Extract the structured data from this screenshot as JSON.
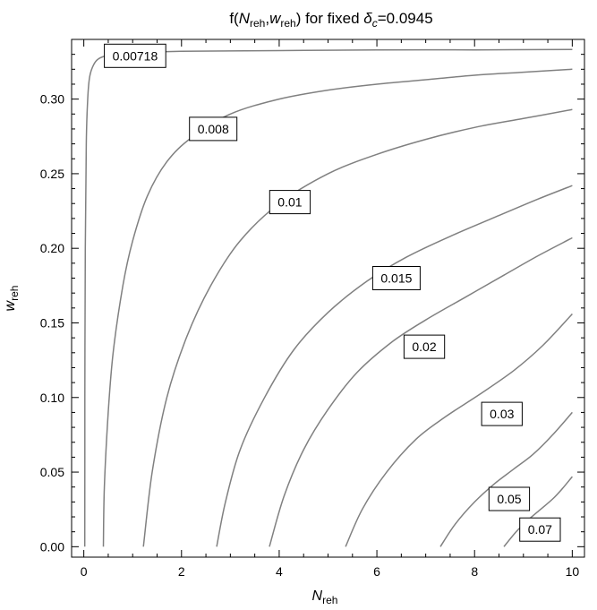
{
  "chart_data": {
    "type": "contour",
    "title": {
      "prefix": "f(",
      "x_symbol": "N",
      "x_sub": "reh",
      "sep": ",",
      "y_symbol": "w",
      "y_sub": "reh",
      "middle": ") for fixed ",
      "param_symbol": "δ",
      "param_sub": "c",
      "param_value": "=0.0945"
    },
    "xlabel": {
      "symbol": "N",
      "sub": "reh"
    },
    "ylabel": {
      "symbol": "w",
      "sub": "reh"
    },
    "xlim": [
      -0.25,
      10.25
    ],
    "ylim": [
      -0.007,
      0.34
    ],
    "xticks": [
      0,
      2,
      4,
      6,
      8,
      10
    ],
    "xtick_labels": [
      "0",
      "2",
      "4",
      "6",
      "8",
      "10"
    ],
    "yticks": [
      0.0,
      0.05,
      0.1,
      0.15,
      0.2,
      0.25,
      0.3
    ],
    "ytick_labels": [
      "0.00",
      "0.05",
      "0.10",
      "0.15",
      "0.20",
      "0.25",
      "0.30"
    ],
    "grid": false,
    "frame": true,
    "line_color": "#808080",
    "contours": [
      {
        "label": "0.00718",
        "label_at": [
          1.05,
          0.329
        ],
        "points": [
          [
            0.02,
            0.0
          ],
          [
            0.022,
            0.1
          ],
          [
            0.03,
            0.2
          ],
          [
            0.05,
            0.27
          ],
          [
            0.08,
            0.3
          ],
          [
            0.12,
            0.315
          ],
          [
            0.2,
            0.323
          ],
          [
            0.3,
            0.327
          ],
          [
            0.5,
            0.3295
          ],
          [
            0.7,
            0.3305
          ],
          [
            1.0,
            0.331
          ],
          [
            2,
            0.332
          ],
          [
            4,
            0.3325
          ],
          [
            6,
            0.333
          ],
          [
            8,
            0.333
          ],
          [
            10,
            0.3333
          ]
        ]
      },
      {
        "label": "0.008",
        "label_at": [
          2.65,
          0.28
        ],
        "points": [
          [
            0.4,
            0.0
          ],
          [
            0.42,
            0.04
          ],
          [
            0.5,
            0.09
          ],
          [
            0.6,
            0.13
          ],
          [
            0.8,
            0.175
          ],
          [
            1.0,
            0.205
          ],
          [
            1.3,
            0.235
          ],
          [
            1.7,
            0.258
          ],
          [
            2.2,
            0.274
          ],
          [
            3,
            0.29
          ],
          [
            4,
            0.3
          ],
          [
            5,
            0.306
          ],
          [
            6,
            0.31
          ],
          [
            7,
            0.313
          ],
          [
            8,
            0.316
          ],
          [
            9,
            0.318
          ],
          [
            10,
            0.32
          ]
        ]
      },
      {
        "label": "0.01",
        "label_at": [
          4.22,
          0.231
        ],
        "points": [
          [
            1.22,
            0.0
          ],
          [
            1.4,
            0.05
          ],
          [
            1.7,
            0.1
          ],
          [
            2.1,
            0.14
          ],
          [
            2.6,
            0.175
          ],
          [
            3.2,
            0.205
          ],
          [
            4.0,
            0.23
          ],
          [
            5,
            0.25
          ],
          [
            6,
            0.263
          ],
          [
            7,
            0.273
          ],
          [
            8,
            0.281
          ],
          [
            9,
            0.287
          ],
          [
            10,
            0.293
          ]
        ]
      },
      {
        "label": "0.015",
        "label_at": [
          6.4,
          0.18
        ],
        "points": [
          [
            2.72,
            0.0
          ],
          [
            2.9,
            0.03
          ],
          [
            3.2,
            0.065
          ],
          [
            3.7,
            0.1
          ],
          [
            4.3,
            0.132
          ],
          [
            5,
            0.157
          ],
          [
            5.8,
            0.178
          ],
          [
            6.6,
            0.194
          ],
          [
            7.5,
            0.208
          ],
          [
            8.5,
            0.222
          ],
          [
            9.3,
            0.233
          ],
          [
            10,
            0.242
          ]
        ]
      },
      {
        "label": "0.02",
        "label_at": [
          6.97,
          0.134
        ],
        "points": [
          [
            3.8,
            0.0
          ],
          [
            4.1,
            0.034
          ],
          [
            4.5,
            0.065
          ],
          [
            5,
            0.092
          ],
          [
            5.6,
            0.117
          ],
          [
            6.3,
            0.137
          ],
          [
            7,
            0.152
          ],
          [
            7.8,
            0.167
          ],
          [
            8.6,
            0.182
          ],
          [
            9.3,
            0.195
          ],
          [
            10,
            0.207
          ]
        ]
      },
      {
        "label": "0.03",
        "label_at": [
          8.56,
          0.089
        ],
        "points": [
          [
            5.36,
            0.0
          ],
          [
            5.7,
            0.025
          ],
          [
            6.2,
            0.05
          ],
          [
            6.8,
            0.072
          ],
          [
            7.4,
            0.087
          ],
          [
            8.1,
            0.102
          ],
          [
            8.8,
            0.118
          ],
          [
            9.4,
            0.135
          ],
          [
            10,
            0.156
          ]
        ]
      },
      {
        "label": "0.05",
        "label_at": [
          8.71,
          0.032
        ],
        "points": [
          [
            7.3,
            0.0
          ],
          [
            7.6,
            0.015
          ],
          [
            8.0,
            0.03
          ],
          [
            8.4,
            0.042
          ],
          [
            8.8,
            0.052
          ],
          [
            9.2,
            0.062
          ],
          [
            9.6,
            0.075
          ],
          [
            10,
            0.09
          ]
        ]
      },
      {
        "label": "0.07",
        "label_at": [
          9.34,
          0.0115
        ],
        "points": [
          [
            8.6,
            0.0
          ],
          [
            8.85,
            0.01
          ],
          [
            9.1,
            0.018
          ],
          [
            9.35,
            0.025
          ],
          [
            9.6,
            0.032
          ],
          [
            9.8,
            0.039
          ],
          [
            10,
            0.047
          ]
        ]
      }
    ]
  }
}
